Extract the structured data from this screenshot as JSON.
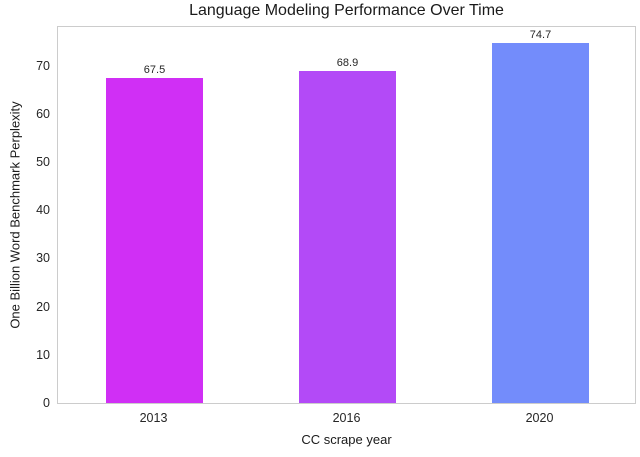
{
  "chart_data": {
    "type": "bar",
    "title": "Language Modeling Performance Over Time",
    "xlabel": "CC scrape year",
    "ylabel": "One Billion Word Benchmark Perplexity",
    "categories": [
      "2013",
      "2016",
      "2020"
    ],
    "values": [
      67.5,
      68.9,
      74.7
    ],
    "bar_labels": [
      "67.5",
      "68.9",
      "74.7"
    ],
    "bar_colors": [
      "#d02ff5",
      "#b34af7",
      "#738cfb"
    ],
    "ylim": [
      0,
      78.4
    ],
    "yticks": [
      0,
      10,
      20,
      30,
      40,
      50,
      60,
      70
    ],
    "grid": false,
    "legend_position": "none",
    "background_color": "#ffffff",
    "spine_color": "#cccccc"
  }
}
